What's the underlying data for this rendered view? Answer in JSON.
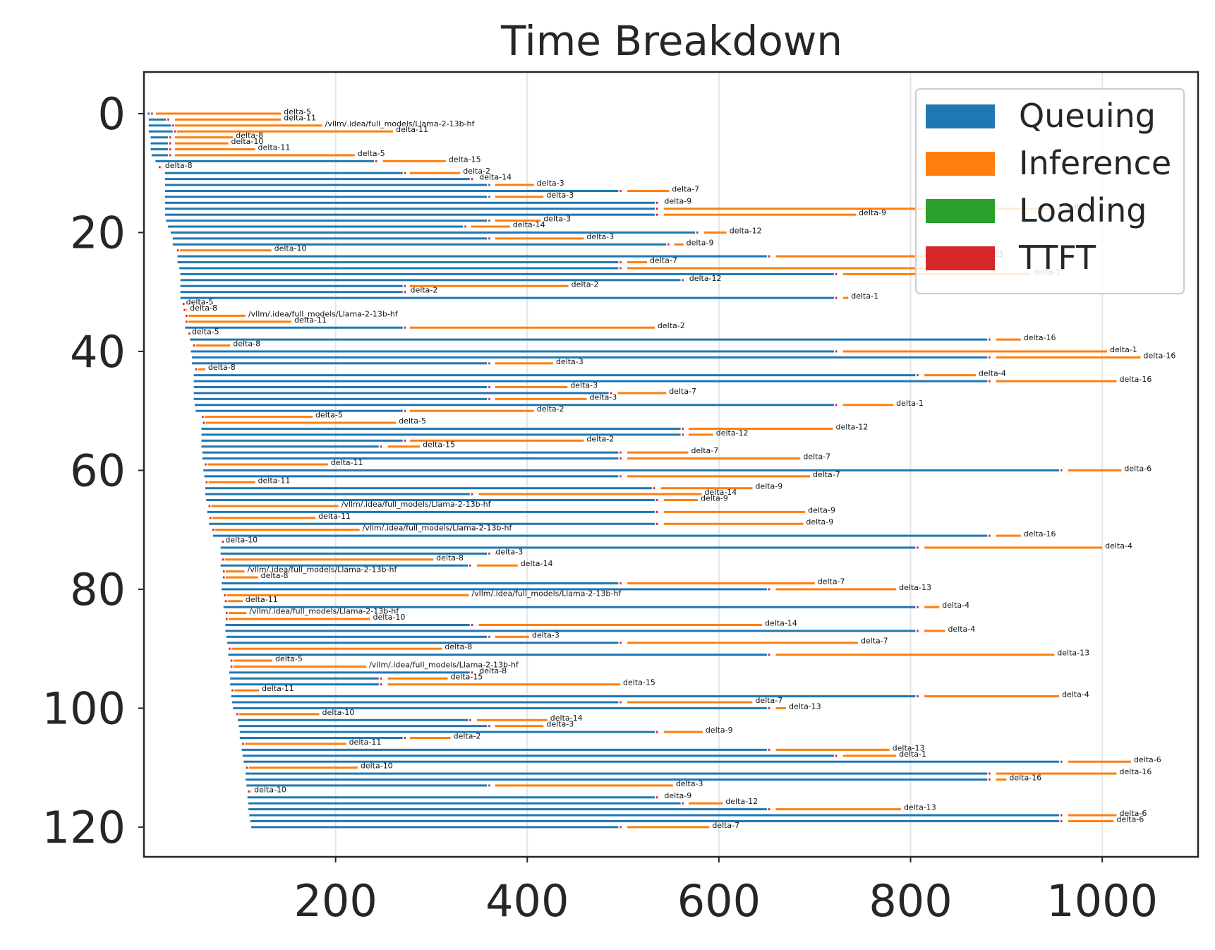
{
  "colors": {
    "queuing": "#1f77b4",
    "inference": "#ff7f0e",
    "loading": "#2ca02c",
    "ttft": "#d62728",
    "grid": "#e5e5e5",
    "axes": "#262626"
  },
  "chart_data": {
    "type": "bar",
    "orientation": "horizontal-timeline",
    "title": "Time Breakdown",
    "xlabel": "",
    "ylabel": "",
    "xlim": [
      0,
      1100
    ],
    "ylim": [
      125,
      -7
    ],
    "y_inverted": true,
    "grid": "vertical-only",
    "legend_position": "top-right",
    "xticks": [
      "200",
      "400",
      "600",
      "800",
      "1000"
    ],
    "yticks": [
      "0",
      "20",
      "40",
      "60",
      "80",
      "100",
      "120"
    ],
    "legend": [
      {
        "name": "Queuing",
        "color": "#1f77b4"
      },
      {
        "name": "Inference",
        "color": "#ff7f0e"
      },
      {
        "name": "Loading",
        "color": "#2ca02c"
      },
      {
        "name": "TTFT",
        "color": "#d62728"
      }
    ],
    "requests": [
      [
        0,
        4,
        6,
        8,
        135,
        "delta-5"
      ],
      [
        1,
        5,
        23,
        28,
        115,
        "delta-11"
      ],
      [
        2,
        5,
        28,
        28,
        158,
        "/vllm/.idea/full_models/Llama-2-13b-hf"
      ],
      [
        3,
        5,
        30,
        30,
        230,
        "delta-11"
      ],
      [
        4,
        7,
        25,
        28,
        65,
        "delta-8"
      ],
      [
        5,
        7,
        25,
        28,
        60,
        "delta-10"
      ],
      [
        6,
        7,
        25,
        28,
        88,
        "delta-11"
      ],
      [
        7,
        8,
        25,
        28,
        192,
        "delta-5"
      ],
      [
        8,
        12,
        240,
        245,
        70,
        "delta-15"
      ],
      [
        9,
        14,
        14,
        14,
        5,
        "delta-8"
      ],
      [
        10,
        22,
        270,
        273,
        57,
        "delta-2"
      ],
      [
        11,
        22,
        340,
        345,
        0,
        "delta-14"
      ],
      [
        12,
        22,
        358,
        362,
        45,
        "delta-3"
      ],
      [
        13,
        22,
        495,
        500,
        48,
        "delta-7"
      ],
      [
        14,
        22,
        358,
        362,
        55,
        "delta-3"
      ],
      [
        15,
        22,
        533,
        538,
        0,
        "delta-9"
      ],
      [
        16,
        22,
        533,
        538,
        420,
        "delta-9"
      ],
      [
        17,
        22,
        533,
        538,
        205,
        "delta-9"
      ],
      [
        18,
        23,
        358,
        362,
        52,
        "delta-3"
      ],
      [
        19,
        25,
        333,
        337,
        45,
        "delta-14"
      ],
      [
        20,
        28,
        575,
        580,
        28,
        "delta-12"
      ],
      [
        21,
        30,
        358,
        362,
        97,
        "delta-3"
      ],
      [
        22,
        30,
        545,
        549,
        14,
        "delta-9"
      ],
      [
        23,
        33,
        33,
        33,
        100,
        "delta-10"
      ],
      [
        24,
        35,
        650,
        655,
        205,
        "delta-13"
      ],
      [
        25,
        35,
        495,
        500,
        25,
        "delta-7"
      ],
      [
        26,
        37,
        495,
        500,
        330,
        "delta-13"
      ],
      [
        27,
        38,
        720,
        725,
        200,
        "delta-1"
      ],
      [
        28,
        38,
        560,
        564,
        0,
        "delta-12"
      ],
      [
        29,
        38,
        270,
        273,
        170,
        "delta-2"
      ],
      [
        30,
        38,
        270,
        273,
        0,
        "delta-2"
      ],
      [
        31,
        38,
        720,
        725,
        10,
        "delta-1"
      ],
      [
        32,
        39,
        39,
        39,
        0,
        "delta-5"
      ],
      [
        33,
        40,
        40,
        40,
        5,
        "delta-8"
      ],
      [
        34,
        42,
        42,
        42,
        64,
        "/vllm/.idea/full_models/Llama-2-13b-hf"
      ],
      [
        35,
        42,
        42,
        42,
        112,
        "delta-11"
      ],
      [
        36,
        43,
        270,
        273,
        260,
        "delta-2"
      ],
      [
        37,
        45,
        45,
        45,
        0,
        "delta-5"
      ],
      [
        38,
        48,
        880,
        885,
        30,
        "delta-16"
      ],
      [
        39,
        50,
        50,
        50,
        40,
        "delta-8"
      ],
      [
        40,
        49,
        720,
        725,
        280,
        "delta-1"
      ],
      [
        41,
        50,
        880,
        885,
        155,
        "delta-16"
      ],
      [
        42,
        50,
        358,
        362,
        65,
        "delta-3"
      ],
      [
        43,
        52,
        52,
        52,
        12,
        "delta-8"
      ],
      [
        44,
        52,
        805,
        810,
        58,
        "delta-4"
      ],
      [
        45,
        52,
        880,
        885,
        130,
        "delta-16"
      ],
      [
        46,
        52,
        358,
        362,
        80,
        "delta-3"
      ],
      [
        47,
        52,
        485,
        490,
        55,
        "delta-7"
      ],
      [
        48,
        52,
        358,
        362,
        100,
        "delta-3"
      ],
      [
        49,
        53,
        720,
        725,
        57,
        "delta-1"
      ],
      [
        50,
        54,
        270,
        273,
        134,
        "delta-2"
      ],
      [
        51,
        59,
        59,
        59,
        117,
        "delta-5"
      ],
      [
        52,
        60,
        60,
        60,
        203,
        "delta-5"
      ],
      [
        53,
        60,
        560,
        564,
        155,
        "delta-12"
      ],
      [
        54,
        60,
        560,
        564,
        30,
        "delta-12"
      ],
      [
        55,
        60,
        270,
        273,
        186,
        "delta-2"
      ],
      [
        56,
        60,
        245,
        250,
        38,
        "delta-15"
      ],
      [
        57,
        61,
        495,
        500,
        68,
        "delta-7"
      ],
      [
        58,
        61,
        495,
        500,
        185,
        "delta-7"
      ],
      [
        59,
        62,
        62,
        62,
        130,
        "delta-11"
      ],
      [
        60,
        62,
        955,
        960,
        60,
        "delta-6"
      ],
      [
        61,
        63,
        495,
        500,
        195,
        "delta-7"
      ],
      [
        62,
        63,
        63,
        63,
        53,
        "delta-11"
      ],
      [
        63,
        64,
        530,
        535,
        100,
        "delta-9"
      ],
      [
        64,
        64,
        340,
        345,
        237,
        "delta-14"
      ],
      [
        65,
        65,
        533,
        538,
        40,
        "delta-9"
      ],
      [
        66,
        66,
        66,
        66,
        137,
        "/vllm/.idea/full_models/Llama-2-13b-hf"
      ],
      [
        67,
        66,
        533,
        538,
        152,
        "delta-9"
      ],
      [
        68,
        67,
        67,
        67,
        112,
        "delta-11"
      ],
      [
        69,
        68,
        533,
        538,
        150,
        "delta-9"
      ],
      [
        70,
        70,
        70,
        70,
        155,
        "/vllm/.idea/full_models/Llama-2-13b-hf"
      ],
      [
        71,
        72,
        880,
        885,
        30,
        "delta-16"
      ],
      [
        72,
        80,
        80,
        80,
        0,
        "delta-10"
      ],
      [
        73,
        80,
        805,
        810,
        190,
        "delta-4"
      ],
      [
        74,
        80,
        358,
        362,
        2,
        "delta-3"
      ],
      [
        75,
        80,
        80,
        80,
        222,
        "delta-8"
      ],
      [
        76,
        80,
        338,
        343,
        47,
        "delta-14"
      ],
      [
        77,
        81,
        81,
        81,
        24,
        "/vllm/.idea/full_models/Llama-2-13b-hf"
      ],
      [
        78,
        81,
        81,
        81,
        38,
        "delta-8"
      ],
      [
        79,
        81,
        495,
        500,
        200,
        "delta-7"
      ],
      [
        80,
        81,
        650,
        655,
        130,
        "delta-13"
      ],
      [
        81,
        82,
        82,
        82,
        257,
        "/vllm/.idea/full_models/Llama-2-13b-hf"
      ],
      [
        82,
        83,
        83,
        83,
        20,
        "delta-11"
      ],
      [
        83,
        83,
        805,
        810,
        20,
        "delta-4"
      ],
      [
        84,
        84,
        84,
        84,
        23,
        "/vllm/.idea/full_models/Llama-2-13b-hf"
      ],
      [
        85,
        84,
        84,
        84,
        152,
        "delta-10"
      ],
      [
        86,
        85,
        340,
        345,
        300,
        "delta-14"
      ],
      [
        87,
        85,
        805,
        810,
        26,
        "delta-4"
      ],
      [
        88,
        86,
        358,
        362,
        40,
        "delta-3"
      ],
      [
        89,
        87,
        495,
        500,
        245,
        "delta-7"
      ],
      [
        90,
        87,
        87,
        87,
        224,
        "delta-8"
      ],
      [
        91,
        88,
        650,
        655,
        295,
        "delta-13"
      ],
      [
        92,
        89,
        89,
        89,
        45,
        "delta-5"
      ],
      [
        93,
        89,
        89,
        89,
        143,
        "/vllm/.idea/full_models/Llama-2-13b-hf"
      ],
      [
        94,
        89,
        340,
        345,
        0,
        "delta-8"
      ],
      [
        95,
        90,
        245,
        250,
        67,
        "delta-15"
      ],
      [
        96,
        90,
        245,
        250,
        247,
        "delta-15"
      ],
      [
        97,
        90,
        90,
        90,
        30,
        "delta-11"
      ],
      [
        98,
        91,
        805,
        810,
        145,
        "delta-4"
      ],
      [
        99,
        92,
        495,
        500,
        135,
        "delta-7"
      ],
      [
        100,
        93,
        650,
        655,
        15,
        "delta-13"
      ],
      [
        101,
        95,
        95,
        95,
        88,
        "delta-10"
      ],
      [
        102,
        98,
        338,
        343,
        78,
        "delta-14"
      ],
      [
        103,
        99,
        358,
        362,
        55,
        "delta-3"
      ],
      [
        104,
        100,
        533,
        538,
        45,
        "delta-9"
      ],
      [
        105,
        100,
        270,
        273,
        47,
        "delta-2"
      ],
      [
        106,
        101,
        101,
        101,
        110,
        "delta-11"
      ],
      [
        107,
        102,
        650,
        655,
        123,
        "delta-13"
      ],
      [
        108,
        103,
        720,
        725,
        60,
        "delta-1"
      ],
      [
        109,
        104,
        955,
        960,
        70,
        "delta-6"
      ],
      [
        110,
        105,
        105,
        105,
        118,
        "delta-10"
      ],
      [
        111,
        106,
        880,
        885,
        130,
        "delta-16"
      ],
      [
        112,
        106,
        880,
        885,
        15,
        "delta-16"
      ],
      [
        113,
        107,
        358,
        362,
        190,
        "delta-3"
      ],
      [
        114,
        107,
        107,
        107,
        5,
        "delta-10"
      ],
      [
        115,
        108,
        533,
        538,
        0,
        "delta-9"
      ],
      [
        116,
        109,
        560,
        564,
        40,
        "delta-12"
      ],
      [
        117,
        109,
        650,
        655,
        135,
        "delta-13"
      ],
      [
        118,
        110,
        955,
        960,
        55,
        "delta-6"
      ],
      [
        119,
        111,
        955,
        960,
        52,
        "delta-6"
      ],
      [
        120,
        112,
        495,
        500,
        90,
        "delta-7"
      ]
    ]
  }
}
